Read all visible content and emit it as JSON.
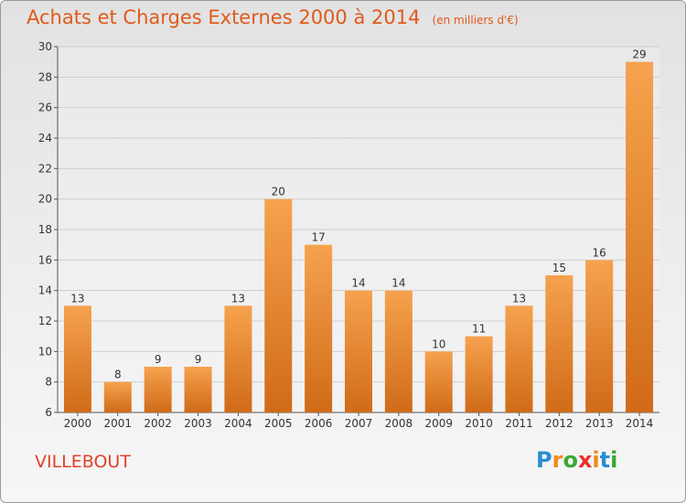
{
  "header": {
    "title": "Achats et Charges Externes 2000 à 2014",
    "subtitle": "(en milliers d'€)"
  },
  "footer": {
    "town": "VILLEBOUT",
    "brand_letters": [
      {
        "ch": "P",
        "color": "#2a8fd0"
      },
      {
        "ch": "r",
        "color": "#f08a1c"
      },
      {
        "ch": "o",
        "color": "#3aa832"
      },
      {
        "ch": "x",
        "color": "#e8302a"
      },
      {
        "ch": "i",
        "color": "#f08a1c"
      },
      {
        "ch": "t",
        "color": "#2a8fd0"
      },
      {
        "ch": "i",
        "color": "#3aa832"
      }
    ]
  },
  "colors": {
    "bar_top": "#f6a24e",
    "bar_bottom": "#d06b18",
    "grid": "#cfcfcf"
  },
  "chart_data": {
    "type": "bar",
    "categories": [
      "2000",
      "2001",
      "2002",
      "2003",
      "2004",
      "2005",
      "2006",
      "2007",
      "2008",
      "2009",
      "2010",
      "2011",
      "2012",
      "2013",
      "2014"
    ],
    "values": [
      13,
      8,
      9,
      9,
      13,
      20,
      17,
      14,
      14,
      10,
      11,
      13,
      15,
      16,
      29
    ],
    "title": "Achats et Charges Externes 2000 à 2014",
    "ylim": [
      6,
      30
    ],
    "yticks": [
      6,
      8,
      10,
      12,
      14,
      16,
      18,
      20,
      22,
      24,
      26,
      28,
      30
    ],
    "grid": true
  }
}
